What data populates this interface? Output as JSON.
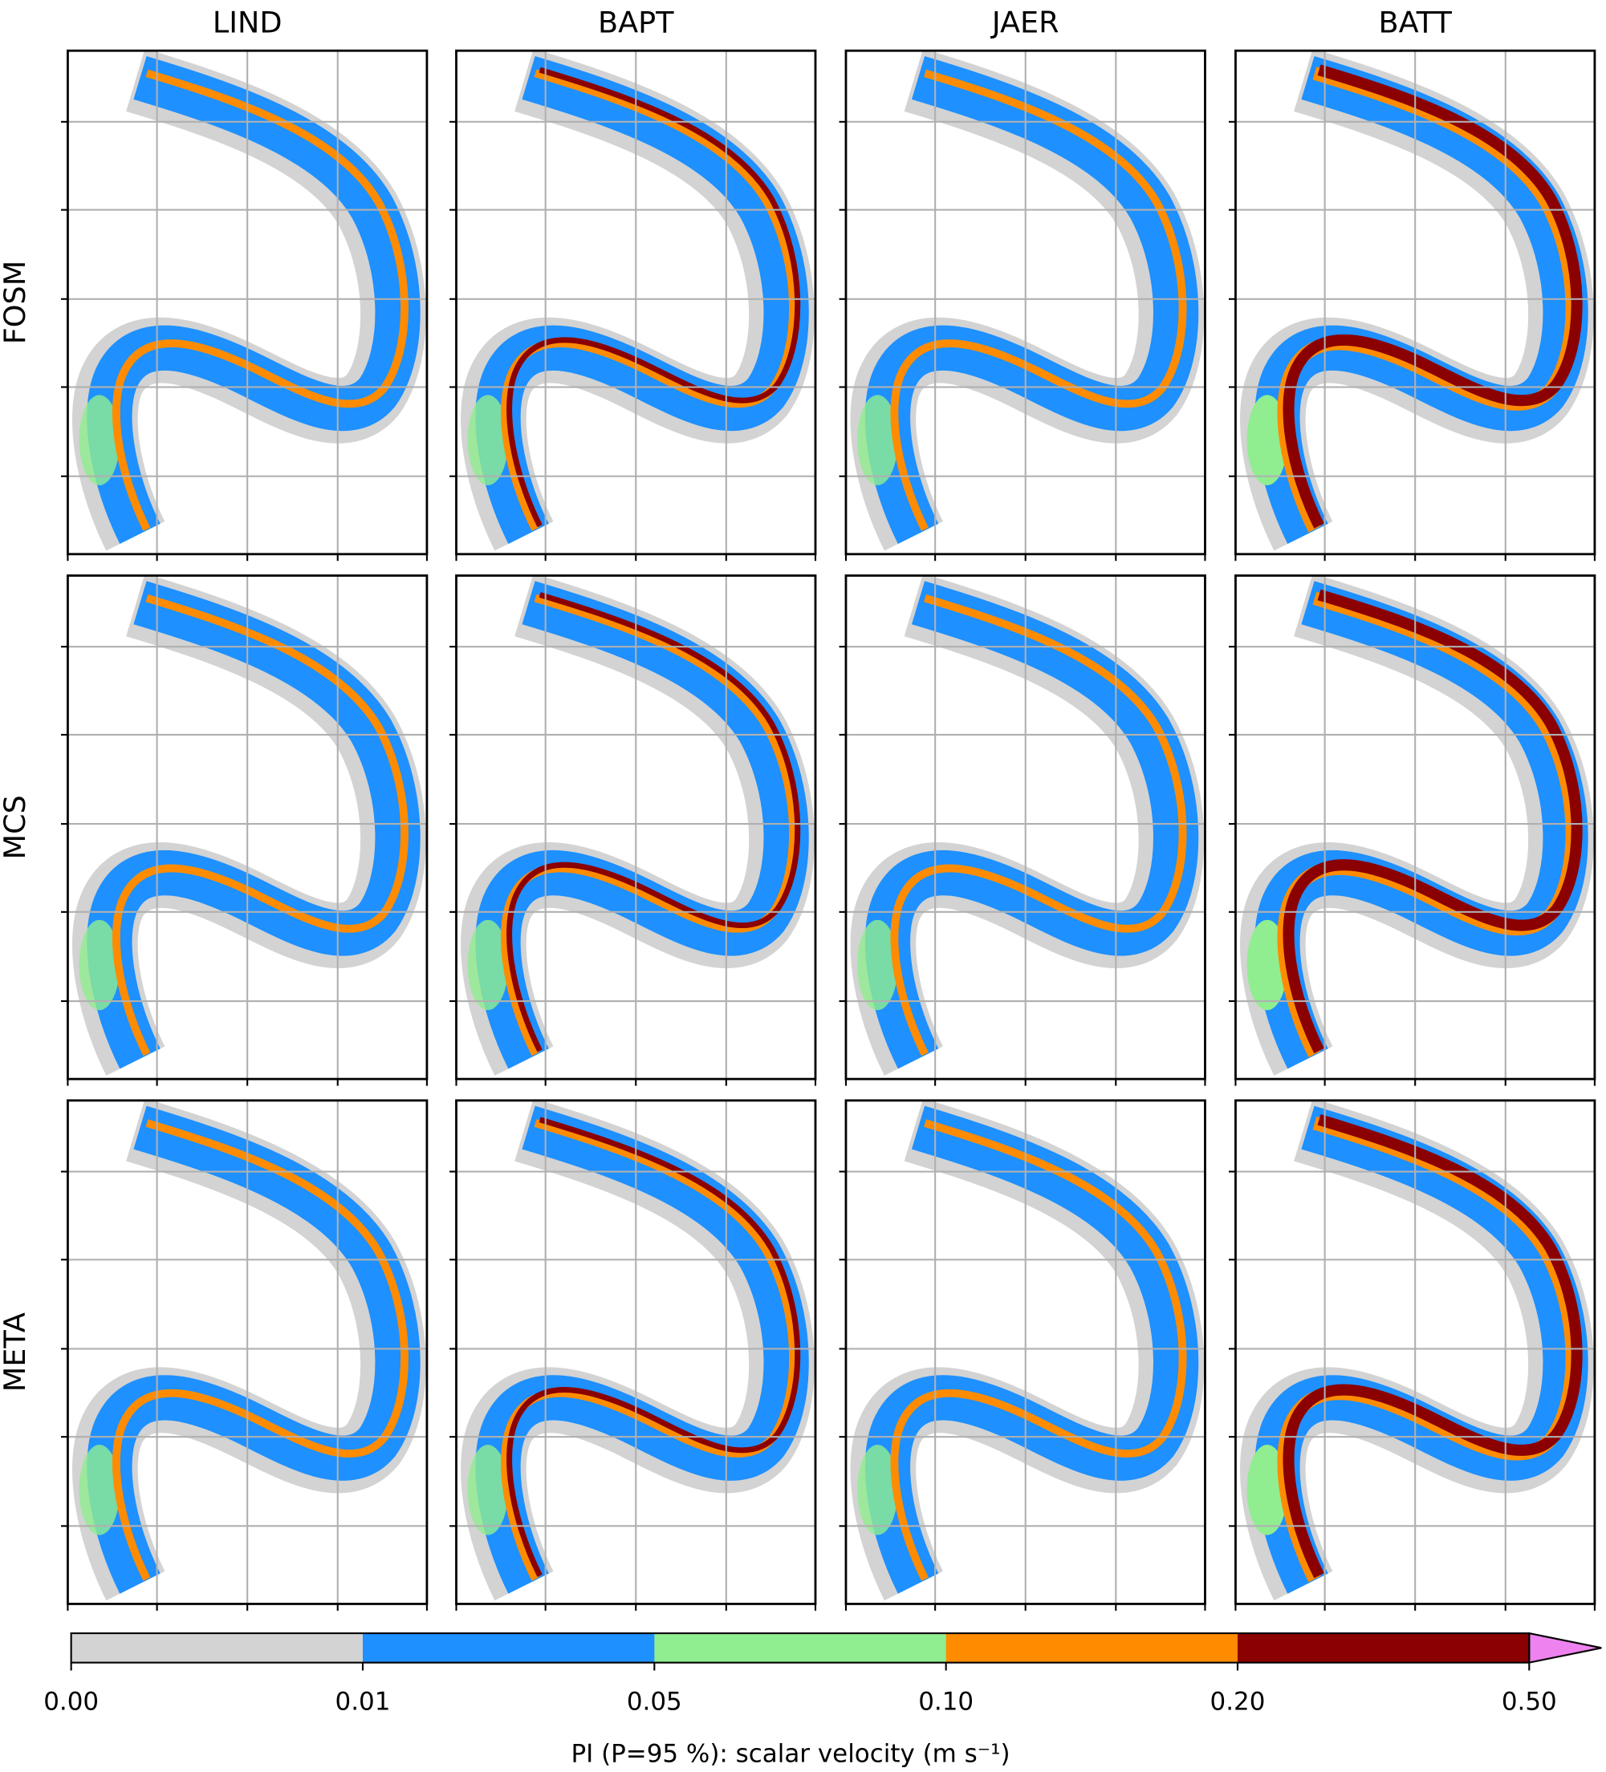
{
  "columns": [
    "LIND",
    "BAPT",
    "JAER",
    "BATT"
  ],
  "rows": [
    "FOSM",
    "MCS",
    "META"
  ],
  "colorbar": {
    "label": "PI (P=95 %): scalar velocity (m s⁻¹)",
    "ticks": [
      {
        "value": 0,
        "label": "0.00"
      },
      {
        "value": 0.01,
        "label": "0.01"
      },
      {
        "value": 0.05,
        "label": "0.05"
      },
      {
        "value": 0.1,
        "label": "0.10"
      },
      {
        "value": 0.2,
        "label": "0.20"
      },
      {
        "value": 0.5,
        "label": "0.50"
      }
    ],
    "colors": [
      "#d3d3d3",
      "#1e90ff",
      "#90ee90",
      "#ff8c00",
      "#8b0000"
    ],
    "extend_color": "#ee82ee"
  }
}
